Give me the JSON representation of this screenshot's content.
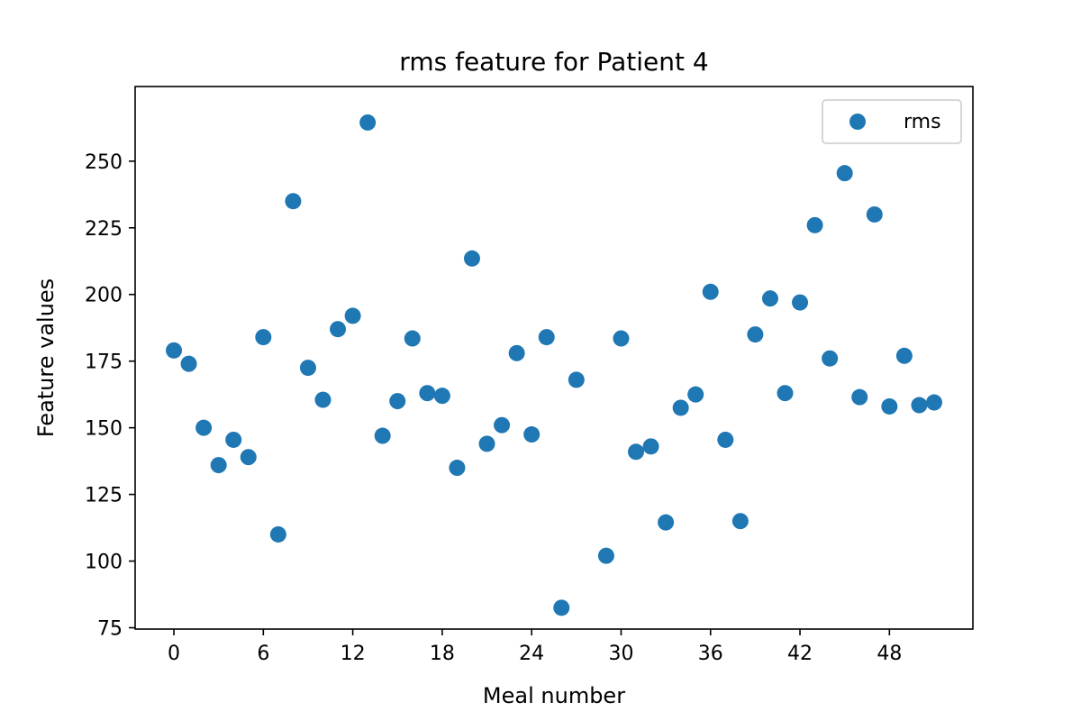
{
  "chart_data": {
    "type": "scatter",
    "title": "rms feature for Patient 4",
    "xlabel": "Meal number",
    "ylabel": "Feature values",
    "xlim": [
      -2.6,
      53.6
    ],
    "ylim": [
      74.5,
      278
    ],
    "xticks": [
      0,
      6,
      12,
      18,
      24,
      30,
      36,
      42,
      48
    ],
    "yticks": [
      75,
      100,
      125,
      150,
      175,
      200,
      225,
      250
    ],
    "grid": false,
    "legend_position": "top-right",
    "series": [
      {
        "name": "rms",
        "color": "#1f77b4",
        "x": [
          0,
          1,
          2,
          3,
          4,
          5,
          6,
          7,
          8,
          9,
          10,
          11,
          12,
          13,
          14,
          15,
          16,
          17,
          18,
          19,
          20,
          21,
          22,
          23,
          24,
          25,
          26,
          27,
          29,
          30,
          31,
          32,
          33,
          34,
          35,
          36,
          37,
          38,
          39,
          40,
          41,
          42,
          43,
          44,
          45,
          46,
          47,
          48,
          49,
          50,
          51
        ],
        "y": [
          179,
          174,
          150,
          136,
          145.5,
          139,
          184,
          110,
          235,
          172.5,
          160.5,
          187,
          192,
          264.5,
          147,
          160,
          183.5,
          163,
          162,
          135,
          213.5,
          144,
          151,
          178,
          147.5,
          184,
          82.5,
          168,
          102,
          183.5,
          141,
          143,
          114.5,
          157.5,
          162.5,
          201,
          145.5,
          115,
          185,
          198.5,
          163,
          197,
          226,
          176,
          245.5,
          161.5,
          230,
          158,
          177,
          158.5,
          159.5
        ]
      }
    ]
  }
}
